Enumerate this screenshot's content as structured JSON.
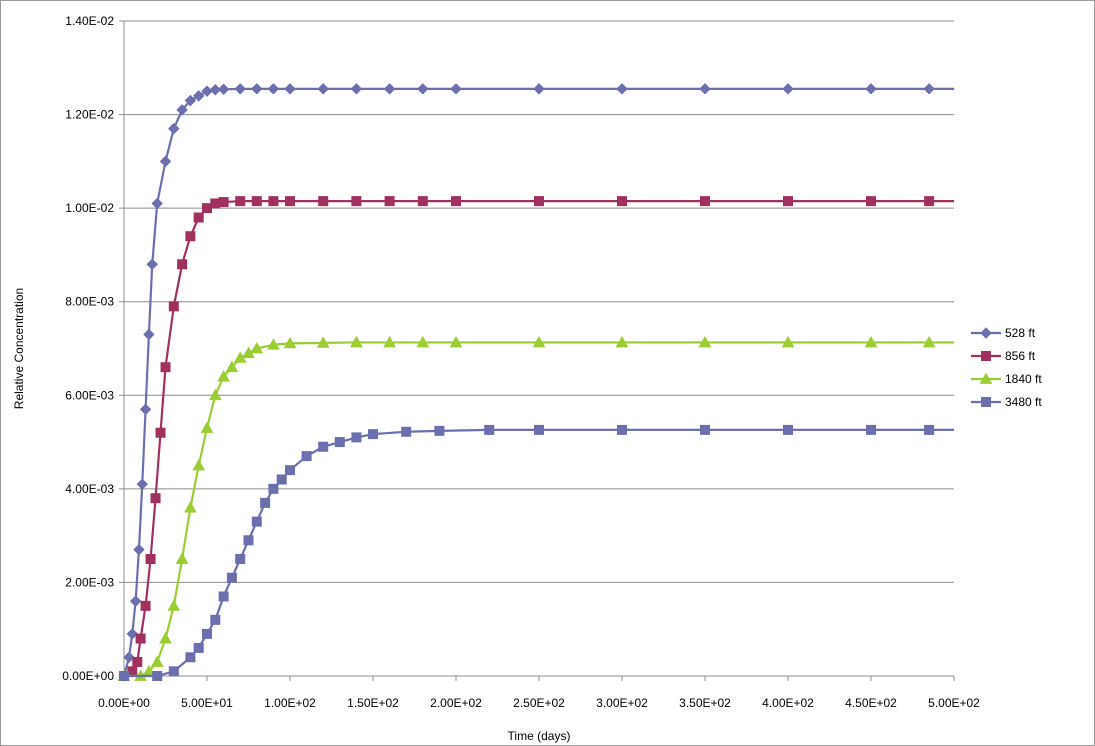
{
  "chart_data": {
    "type": "line",
    "title": "",
    "xlabel": "Time (days)",
    "ylabel": "Relative Concentration",
    "xlim": [
      0,
      500
    ],
    "ylim": [
      0,
      0.014
    ],
    "x_ticks": [
      {
        "value": 0,
        "label": "0.00E+00"
      },
      {
        "value": 50,
        "label": "5.00E+01"
      },
      {
        "value": 100,
        "label": "1.00E+02"
      },
      {
        "value": 150,
        "label": "1.50E+02"
      },
      {
        "value": 200,
        "label": "2.00E+02"
      },
      {
        "value": 250,
        "label": "2.50E+02"
      },
      {
        "value": 300,
        "label": "3.00E+02"
      },
      {
        "value": 350,
        "label": "3.50E+02"
      },
      {
        "value": 400,
        "label": "4.00E+02"
      },
      {
        "value": 450,
        "label": "4.50E+02"
      },
      {
        "value": 500,
        "label": "5.00E+02"
      }
    ],
    "y_ticks": [
      {
        "value": 0,
        "label": "0.00E+00"
      },
      {
        "value": 0.002,
        "label": "2.00E-03"
      },
      {
        "value": 0.004,
        "label": "4.00E-03"
      },
      {
        "value": 0.006,
        "label": "6.00E-03"
      },
      {
        "value": 0.008,
        "label": "8.00E-03"
      },
      {
        "value": 0.01,
        "label": "1.00E-02"
      },
      {
        "value": 0.012,
        "label": "1.20E-02"
      },
      {
        "value": 0.014,
        "label": "1.40E-02"
      }
    ],
    "grid": "horizontal",
    "legend_position": "right",
    "series": [
      {
        "name": "528 ft",
        "color": "#6b6fae",
        "marker": "diamond",
        "x": [
          0,
          3,
          5,
          7,
          9,
          11,
          13,
          15,
          17,
          20,
          25,
          30,
          35,
          40,
          45,
          50,
          55,
          60,
          70,
          80,
          90,
          100,
          120,
          140,
          160,
          180,
          200,
          250,
          300,
          350,
          400,
          450,
          485
        ],
        "y": [
          0.0,
          0.0004,
          0.0009,
          0.0016,
          0.0027,
          0.0041,
          0.0057,
          0.0073,
          0.0088,
          0.0101,
          0.011,
          0.0117,
          0.0121,
          0.0123,
          0.0124,
          0.0125,
          0.01253,
          0.01254,
          0.01255,
          0.01255,
          0.01255,
          0.01255,
          0.01255,
          0.01255,
          0.01255,
          0.01255,
          0.01255,
          0.01255,
          0.01255,
          0.01255,
          0.01255,
          0.01255,
          0.01255
        ]
      },
      {
        "name": "856 ft",
        "color": "#a0305e",
        "marker": "square",
        "x": [
          0,
          5,
          8,
          10,
          13,
          16,
          19,
          22,
          25,
          30,
          35,
          40,
          45,
          50,
          55,
          60,
          70,
          80,
          90,
          100,
          120,
          140,
          160,
          180,
          200,
          250,
          300,
          350,
          400,
          450,
          485
        ],
        "y": [
          0.0,
          0.0001,
          0.0003,
          0.0008,
          0.0015,
          0.0025,
          0.0038,
          0.0052,
          0.0066,
          0.0079,
          0.0088,
          0.0094,
          0.0098,
          0.01,
          0.0101,
          0.01013,
          0.01015,
          0.01015,
          0.01015,
          0.01015,
          0.01015,
          0.01015,
          0.01015,
          0.01015,
          0.01015,
          0.01015,
          0.01015,
          0.01015,
          0.01015,
          0.01015,
          0.01015
        ]
      },
      {
        "name": "1840 ft",
        "color": "#9acd32",
        "marker": "triangle",
        "x": [
          0,
          10,
          15,
          20,
          25,
          30,
          35,
          40,
          45,
          50,
          55,
          60,
          65,
          70,
          75,
          80,
          90,
          100,
          120,
          140,
          160,
          180,
          200,
          250,
          300,
          350,
          400,
          450,
          485
        ],
        "y": [
          0.0,
          0.0,
          0.0001,
          0.0003,
          0.0008,
          0.0015,
          0.0025,
          0.0036,
          0.0045,
          0.0053,
          0.006,
          0.0064,
          0.0066,
          0.0068,
          0.0069,
          0.007,
          0.00708,
          0.00711,
          0.00712,
          0.00713,
          0.00713,
          0.00713,
          0.00713,
          0.00713,
          0.00713,
          0.00713,
          0.00713,
          0.00713,
          0.00713
        ]
      },
      {
        "name": "3480 ft",
        "color": "#6b6fae",
        "marker": "square",
        "x": [
          0,
          20,
          30,
          40,
          45,
          50,
          55,
          60,
          65,
          70,
          75,
          80,
          85,
          90,
          95,
          100,
          110,
          120,
          130,
          140,
          150,
          170,
          190,
          220,
          250,
          300,
          350,
          400,
          450,
          485
        ],
        "y": [
          0.0,
          0.0,
          0.0001,
          0.0004,
          0.0006,
          0.0009,
          0.0012,
          0.0017,
          0.0021,
          0.0025,
          0.0029,
          0.0033,
          0.0037,
          0.004,
          0.0042,
          0.0044,
          0.0047,
          0.0049,
          0.005,
          0.0051,
          0.00517,
          0.00522,
          0.00524,
          0.00526,
          0.00526,
          0.00526,
          0.00526,
          0.00526,
          0.00526,
          0.00526
        ]
      }
    ]
  }
}
